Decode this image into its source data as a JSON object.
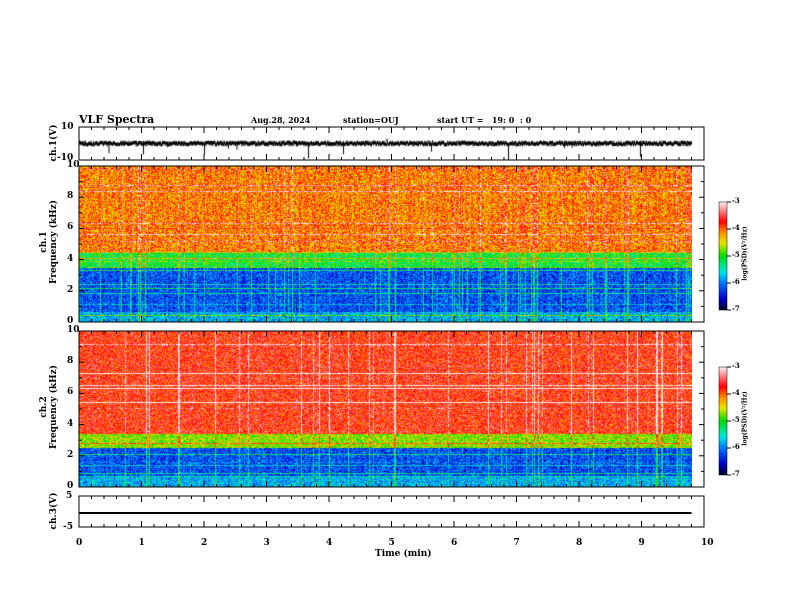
{
  "header": {
    "title": "VLF Spectra",
    "date": "Aug.28, 2024",
    "station": "station=OUJ",
    "start": "start UT =   19: 0  : 0"
  },
  "chart_data": [
    {
      "type": "line",
      "name": "ch.1",
      "ylabel": "ch.1(V)",
      "ylim": [
        -10,
        10
      ],
      "yticks": [
        "10",
        "-10"
      ],
      "xlim": [
        0,
        10
      ],
      "description_values": "noisy waveform around 0 V with spikes"
    },
    {
      "type": "heatmap",
      "name": "ch.1 spectrogram",
      "ylabel": "ch.1\nFrequency (kHz)",
      "ylabel_top": "ch.1",
      "ylabel_bottom": "Frequency (kHz)",
      "ylim": [
        0,
        10
      ],
      "yticks": [
        "0",
        "2",
        "4",
        "6",
        "8",
        "10"
      ],
      "xlim": [
        0,
        10
      ],
      "colorbar": {
        "label": "log(PSD)(V²/Hz)",
        "range": [
          -7,
          -3
        ],
        "ticks": [
          "-3",
          "-4",
          "-5",
          "-6",
          "-7"
        ]
      },
      "transition_khz": 4.5
    },
    {
      "type": "heatmap",
      "name": "ch.2 spectrogram",
      "ylabel_top": "ch.2",
      "ylabel_bottom": "Frequency (kHz)",
      "ylim": [
        0,
        10
      ],
      "yticks": [
        "0",
        "2",
        "4",
        "6",
        "8",
        "10"
      ],
      "xlim": [
        0,
        10
      ],
      "colorbar": {
        "label": "log(PSD)(V²/Hz)",
        "range": [
          -7,
          -3
        ],
        "ticks": [
          "-3",
          "-4",
          "-5",
          "-6",
          "-7"
        ]
      },
      "transition_khz": 3.5
    },
    {
      "type": "line",
      "name": "ch.3",
      "ylabel": "ch.3(V)",
      "ylim": [
        -5,
        5
      ],
      "yticks": [
        "5",
        "-5"
      ],
      "x": [
        0,
        9.8
      ],
      "y": [
        -0.5,
        -0.5
      ]
    }
  ],
  "xaxis": {
    "label": "Time  (min)",
    "ticks": [
      "0",
      "1",
      "2",
      "3",
      "4",
      "5",
      "6",
      "7",
      "8",
      "9",
      "10"
    ],
    "data_end_min": 9.8
  }
}
